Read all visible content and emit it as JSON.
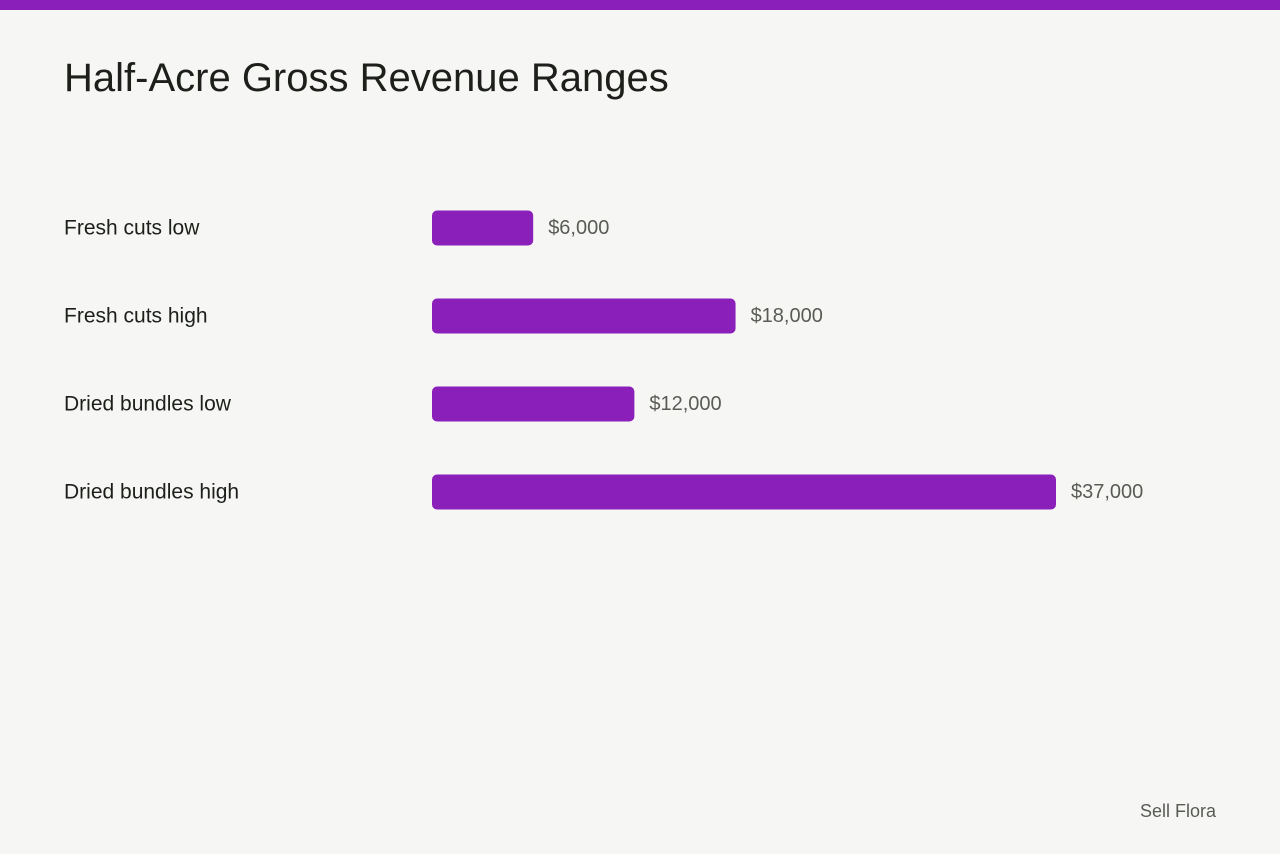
{
  "header": {
    "accent_color": "#8b1fba"
  },
  "chart_data": {
    "type": "bar",
    "orientation": "horizontal",
    "title": "Half-Acre Gross Revenue Ranges",
    "categories": [
      "Fresh cuts low",
      "Fresh cuts high",
      "Dried bundles low",
      "Dried bundles high"
    ],
    "values": [
      6000,
      18000,
      12000,
      37000
    ],
    "value_labels": [
      "$6,000",
      "$18,000",
      "$12,000",
      "$37,000"
    ],
    "xlabel": "",
    "ylabel": "",
    "xlim": [
      0,
      37000
    ],
    "grid": false,
    "legend": "none",
    "bar_color": "#8b1fba"
  },
  "footer": {
    "brand": "Sell Flora"
  }
}
